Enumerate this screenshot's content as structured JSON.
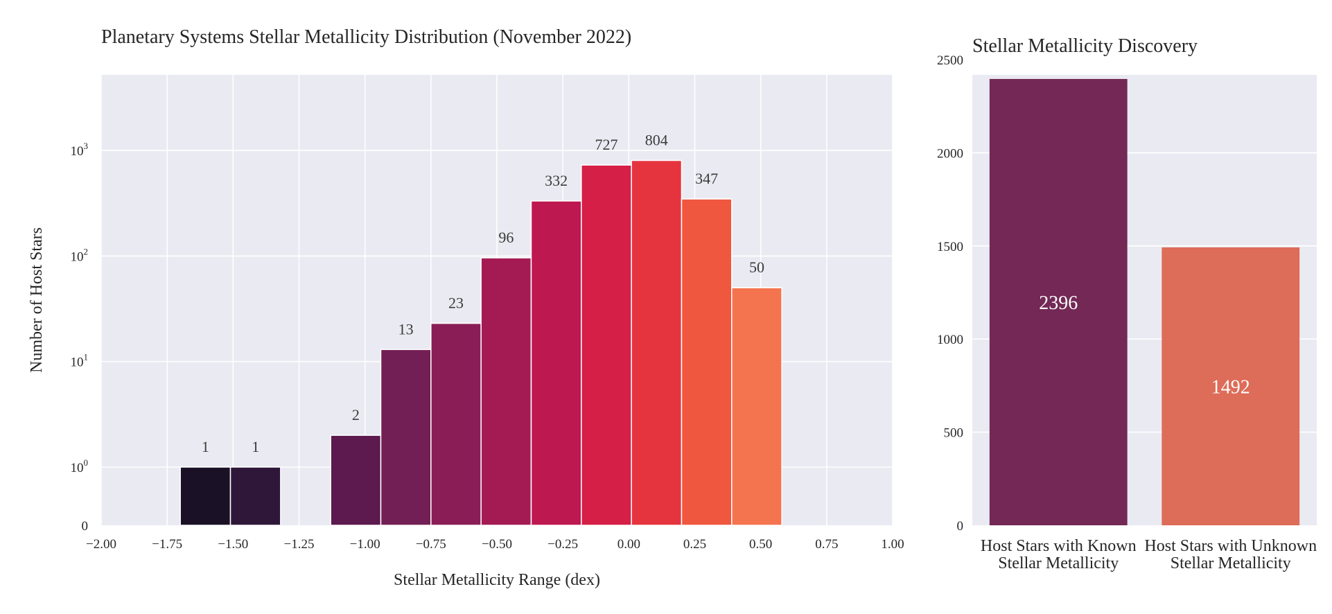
{
  "chart_data": [
    {
      "type": "bar",
      "title": "Planetary Systems Stellar Metallicity Distribution (November 2022)",
      "xlabel": "Stellar Metallicity Range (dex)",
      "ylabel": "Number of Host Stars",
      "yscale": "symlog",
      "grid": true,
      "xlim": [
        -2.0,
        1.0
      ],
      "xticks": [
        "−2.00",
        "−1.75",
        "−1.50",
        "−1.25",
        "−1.00",
        "−0.75",
        "−0.50",
        "−0.25",
        "0.00",
        "0.25",
        "0.50",
        "0.75",
        "1.00"
      ],
      "yticks": [
        {
          "label": "0"
        },
        {
          "base": "10",
          "exp": "0"
        },
        {
          "base": "10",
          "exp": "1"
        },
        {
          "base": "10",
          "exp": "2"
        },
        {
          "base": "10",
          "exp": "3"
        }
      ],
      "bins": [
        {
          "x_start": -1.7,
          "x_end": -1.51,
          "value": 1,
          "label": "1",
          "color": "#1b1127"
        },
        {
          "x_start": -1.51,
          "x_end": -1.32,
          "value": 1,
          "label": "1",
          "color": "#2e1739"
        },
        {
          "x_start": -1.13,
          "x_end": -0.94,
          "value": 2,
          "label": "2",
          "color": "#5c1a4e"
        },
        {
          "x_start": -0.94,
          "x_end": -0.75,
          "value": 13,
          "label": "13",
          "color": "#721f55"
        },
        {
          "x_start": -0.75,
          "x_end": -0.56,
          "value": 23,
          "label": "23",
          "color": "#8a1d56"
        },
        {
          "x_start": -0.56,
          "x_end": -0.37,
          "value": 96,
          "label": "96",
          "color": "#a41b54"
        },
        {
          "x_start": -0.37,
          "x_end": -0.18,
          "value": 332,
          "label": "332",
          "color": "#be1851"
        },
        {
          "x_start": -0.18,
          "x_end": 0.01,
          "value": 727,
          "label": "727",
          "color": "#d51f47"
        },
        {
          "x_start": 0.01,
          "x_end": 0.2,
          "value": 804,
          "label": "804",
          "color": "#e5343e"
        },
        {
          "x_start": 0.2,
          "x_end": 0.39,
          "value": 347,
          "label": "347",
          "color": "#ef573e"
        },
        {
          "x_start": 0.39,
          "x_end": 0.58,
          "value": 50,
          "label": "50",
          "color": "#f4744f"
        }
      ]
    },
    {
      "type": "bar",
      "title": "Stellar Metallicity Discovery",
      "ylim": [
        0,
        2500
      ],
      "yticks": [
        "0",
        "500",
        "1000",
        "1500",
        "2000",
        "2500"
      ],
      "grid": true,
      "categories": [
        {
          "line1": "Host Stars with Known",
          "line2": "Stellar Metallicity"
        },
        {
          "line1": "Host Stars with Unknown",
          "line2": "Stellar Metallicity"
        }
      ],
      "values": [
        2396,
        1492
      ],
      "labels": [
        "2396",
        "1492"
      ],
      "colors": [
        "#732855",
        "#dd6c58"
      ]
    }
  ]
}
